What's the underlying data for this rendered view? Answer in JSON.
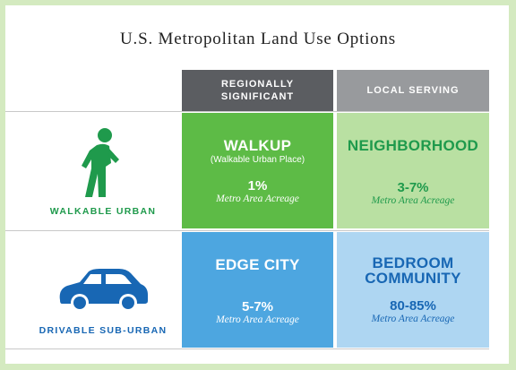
{
  "title": "U.S. Metropolitan Land Use Options",
  "columns": {
    "regional": "REGIONALLY SIGNIFICANT",
    "local": "LOCAL SERVING"
  },
  "rows": {
    "walkable": {
      "label": "WALKABLE URBAN",
      "icon": "walking-person-icon",
      "color": "#1f9a4c"
    },
    "drivable": {
      "label": "DRIVABLE SUB-URBAN",
      "icon": "car-icon",
      "color": "#1867b4"
    }
  },
  "cells": {
    "walkup": {
      "name": "WALKUP",
      "subtitle": "(Walkable Urban Place)",
      "percent": "1%",
      "caption": "Metro Area Acreage"
    },
    "neighborhood": {
      "name": "NEIGHBORHOOD",
      "percent": "3-7%",
      "caption": "Metro Area Acreage"
    },
    "edge_city": {
      "name": "EDGE CITY",
      "percent": "5-7%",
      "caption": "Metro Area Acreage"
    },
    "bedroom": {
      "name_line1": "BEDROOM",
      "name_line2": "COMMUNITY",
      "percent": "80-85%",
      "caption": "Metro Area Acreage"
    }
  },
  "colors": {
    "background": "#d4eac0",
    "header_regional": "#5b5d61",
    "header_local": "#989a9d",
    "walkup": "#5dbb46",
    "neighborhood": "#b9e0a2",
    "edge_city": "#4da6e0",
    "bedroom": "#aed6f2"
  }
}
